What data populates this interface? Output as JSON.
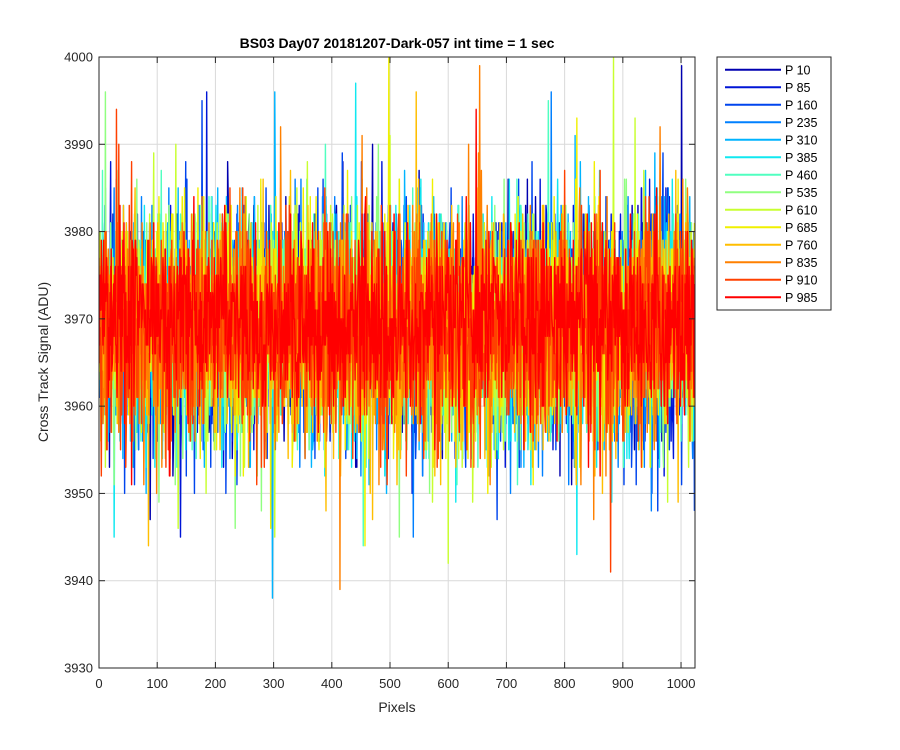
{
  "chart_data": {
    "type": "line",
    "title": "BS03 Day07 20181207-Dark-057 int time = 1 sec",
    "xlabel": "Pixels",
    "ylabel": "Cross Track Signal (ADU)",
    "xlim": [
      0,
      1024
    ],
    "ylim": [
      3930,
      4000
    ],
    "xticks": [
      "0",
      "100",
      "200",
      "300",
      "400",
      "500",
      "600",
      "700",
      "800",
      "900",
      "1000"
    ],
    "yticks": [
      "3930",
      "3940",
      "3950",
      "3960",
      "3970",
      "3980",
      "3990",
      "4000"
    ],
    "grid": true,
    "legend_position": "outside-top-right",
    "pixels": 1024,
    "series": [
      {
        "name": "P 10",
        "color": "#0000b0",
        "mean": 3969,
        "spread": 6.5,
        "min": 3947,
        "max": 3999
      },
      {
        "name": "P 85",
        "color": "#0015d6",
        "mean": 3969,
        "spread": 6.5,
        "min": 3945,
        "max": 3996
      },
      {
        "name": "P 160",
        "color": "#0045ee",
        "mean": 3969,
        "spread": 6.5,
        "min": 3947,
        "max": 3995
      },
      {
        "name": "P 235",
        "color": "#0080ff",
        "mean": 3969,
        "spread": 6.5,
        "min": 3945,
        "max": 3996
      },
      {
        "name": "P 310",
        "color": "#00b4ff",
        "mean": 3969,
        "spread": 6.5,
        "min": 3938,
        "max": 3996
      },
      {
        "name": "P 385",
        "color": "#10e8f0",
        "mean": 3969,
        "spread": 6.5,
        "min": 3943,
        "max": 3997
      },
      {
        "name": "P 460",
        "color": "#50ffc0",
        "mean": 3969,
        "spread": 6.5,
        "min": 3944,
        "max": 3995
      },
      {
        "name": "P 535",
        "color": "#90ff80",
        "mean": 3969,
        "spread": 6.5,
        "min": 3945,
        "max": 3996
      },
      {
        "name": "P 610",
        "color": "#c8ff30",
        "mean": 3969,
        "spread": 6.5,
        "min": 3942,
        "max": 4000
      },
      {
        "name": "P 685",
        "color": "#f0f000",
        "mean": 3969,
        "spread": 6.5,
        "min": 3944,
        "max": 4000
      },
      {
        "name": "P 760",
        "color": "#ffbe00",
        "mean": 3969,
        "spread": 6.5,
        "min": 3944,
        "max": 3996
      },
      {
        "name": "P 835",
        "color": "#ff8000",
        "mean": 3969,
        "spread": 6.5,
        "min": 3939,
        "max": 3999
      },
      {
        "name": "P 910",
        "color": "#ff4000",
        "mean": 3969,
        "spread": 6.5,
        "min": 3941,
        "max": 3994
      },
      {
        "name": "P 985",
        "color": "#ff0000",
        "mean": 3970,
        "spread": 5.5,
        "min": 3951,
        "max": 3994
      }
    ]
  }
}
